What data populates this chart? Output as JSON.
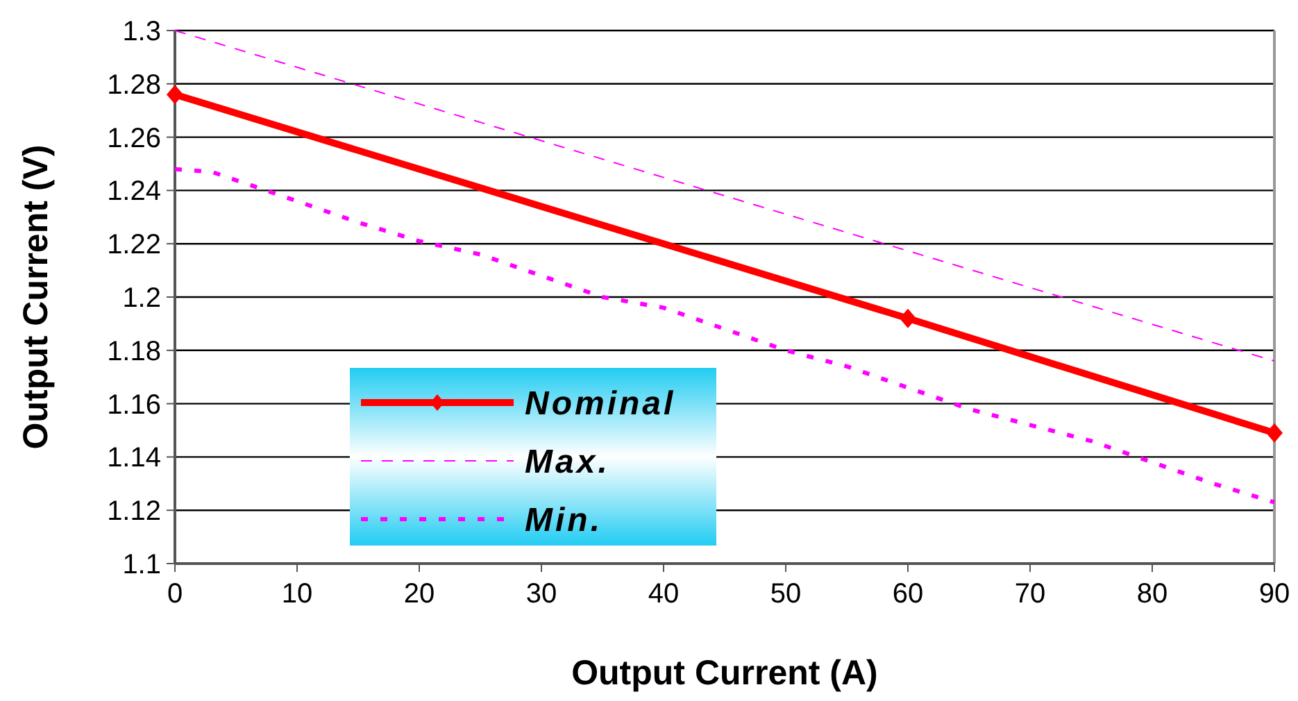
{
  "chart_data": {
    "type": "line",
    "xlabel": "Output Current (A)",
    "ylabel": "Output Current (V)",
    "xlim": [
      0,
      90
    ],
    "ylim": [
      1.1,
      1.3
    ],
    "xticks": [
      0,
      10,
      20,
      30,
      40,
      50,
      60,
      70,
      80,
      90
    ],
    "yticks": [
      1.1,
      1.12,
      1.14,
      1.16,
      1.18,
      1.2,
      1.22,
      1.24,
      1.26,
      1.28,
      1.3
    ],
    "grid": "y",
    "legend": "bottom left",
    "series": [
      {
        "name": "Nominal",
        "color": "#ff0000",
        "marker": "diamond",
        "line_style": "solid",
        "x": [
          0,
          60,
          90
        ],
        "values": [
          1.276,
          1.192,
          1.149
        ]
      },
      {
        "name": "Max.",
        "color": "#ff00ff",
        "marker": "none",
        "line_style": "dashed",
        "x": [
          0,
          90
        ],
        "values": [
          1.3,
          1.176
        ]
      },
      {
        "name": "Min.",
        "color": "#ff00ff",
        "marker": "none",
        "line_style": "dotted",
        "x": [
          0,
          3,
          10,
          15,
          20,
          25,
          30,
          35,
          40,
          45,
          50,
          55,
          60,
          65,
          70,
          75,
          80,
          85,
          90
        ],
        "values": [
          1.248,
          1.247,
          1.236,
          1.228,
          1.221,
          1.216,
          1.208,
          1.2,
          1.196,
          1.188,
          1.18,
          1.174,
          1.166,
          1.158,
          1.152,
          1.146,
          1.138,
          1.13,
          1.123
        ]
      }
    ]
  }
}
